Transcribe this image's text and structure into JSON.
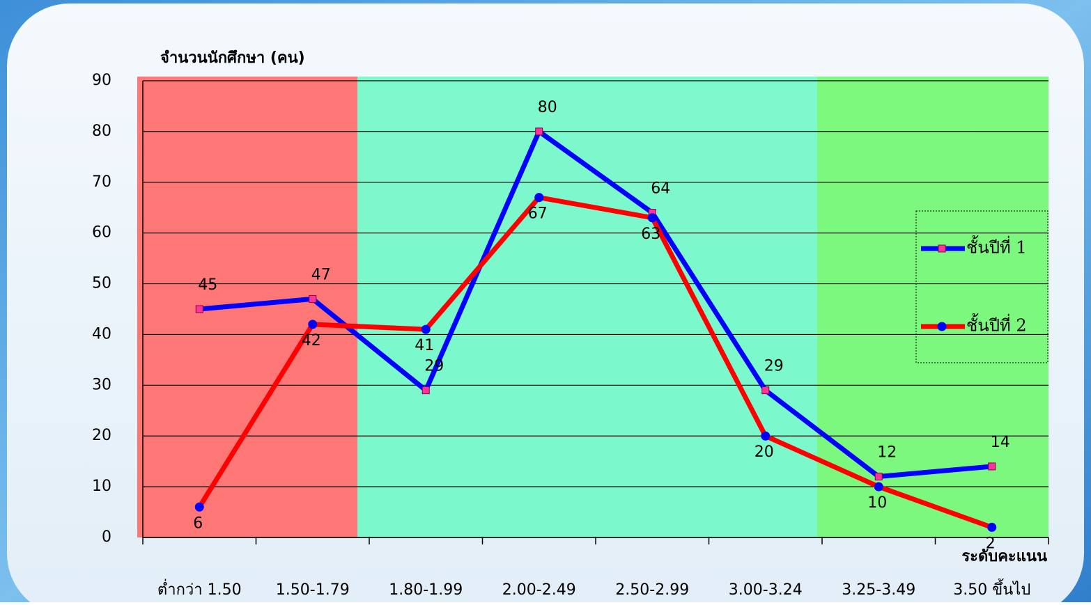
{
  "chart_data": {
    "type": "line",
    "y_axis_label": "จำนวนนักศึกษา (คน)",
    "x_axis_label": "ระดับคะแนน",
    "categories": [
      "ต่ำกว่า 1.50",
      "1.50-1.79",
      "1.80-1.99",
      "2.00-2.49",
      "2.50-2.99",
      "3.00-3.24",
      "3.25-3.49",
      "3.50 ขึ้นไป"
    ],
    "series": [
      {
        "name": "ชั้นปีที่ 1",
        "color": "#0000ff",
        "marker": "square",
        "marker_color": "#ff3399",
        "values": [
          45,
          47,
          29,
          80,
          64,
          29,
          12,
          14
        ]
      },
      {
        "name": "ชั้นปีที่ 2",
        "color": "#ff0000",
        "marker": "circle",
        "marker_color": "#0000ff",
        "values": [
          6,
          42,
          41,
          67,
          63,
          20,
          10,
          2
        ]
      }
    ],
    "ylim": [
      0,
      90
    ],
    "yticks": [
      0,
      10,
      20,
      30,
      40,
      50,
      60,
      70,
      80,
      90
    ],
    "grid": true,
    "legend": "right"
  }
}
